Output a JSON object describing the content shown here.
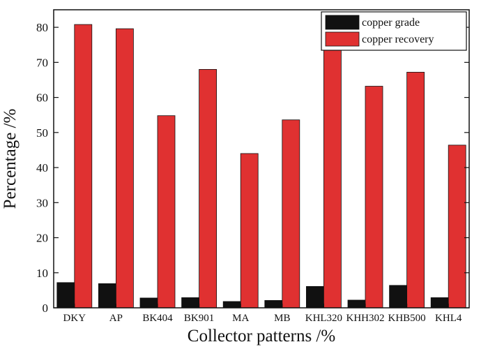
{
  "chart_data": {
    "type": "bar",
    "xlabel": "Collector patterns /%",
    "ylabel": "Percentage /%",
    "ylim": [
      0,
      85
    ],
    "yticks": [
      0,
      10,
      20,
      30,
      40,
      50,
      60,
      70,
      80
    ],
    "grid": false,
    "legend_position": "top-right",
    "categories": [
      "DKY",
      "AP",
      "BK404",
      "BK901",
      "MA",
      "MB",
      "KHL320",
      "KHH302",
      "KHB500",
      "KHL4"
    ],
    "series": [
      {
        "name": "copper grade",
        "color": "#111111",
        "values": [
          7.2,
          6.9,
          2.8,
          2.9,
          1.8,
          2.1,
          6.1,
          2.2,
          6.4,
          2.9
        ]
      },
      {
        "name": "copper recovery",
        "color": "#e03131",
        "values": [
          80.8,
          79.6,
          54.8,
          68.0,
          44.0,
          53.6,
          73.6,
          63.2,
          67.2,
          46.4
        ]
      }
    ]
  }
}
